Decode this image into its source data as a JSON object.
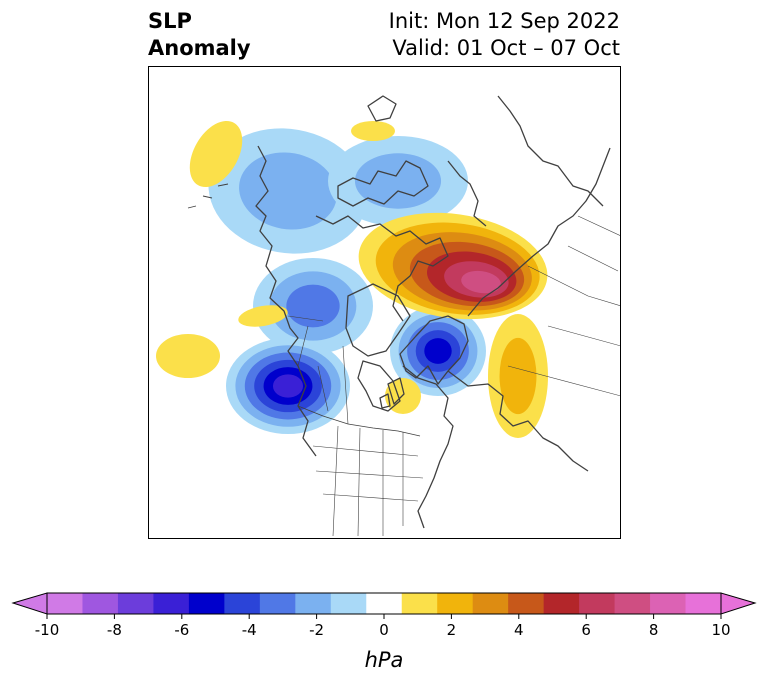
{
  "title": {
    "left": "SLP\nAnomaly",
    "init": "Init: Mon 12 Sep 2022",
    "valid": "Valid: 01 Oct – 07 Oct"
  },
  "colorbar": {
    "unit": "hPa",
    "tick_labels": [
      "-10",
      "-8",
      "-6",
      "-4",
      "-2",
      "0",
      "2",
      "4",
      "6",
      "8",
      "10"
    ],
    "levels": [
      -10,
      -9,
      -8,
      -7,
      -6,
      -5,
      -4,
      -3,
      -2,
      -1,
      1,
      2,
      3,
      4,
      5,
      6,
      7,
      8,
      9,
      10
    ],
    "colors": [
      "#d07ae6",
      "#9f57e0",
      "#6c3ddb",
      "#3a20d6",
      "#0000cc",
      "#2b44d8",
      "#5078e6",
      "#7bb1f0",
      "#a9d9f7",
      "#ffffff",
      "#fbe04a",
      "#f1b40c",
      "#dd8c12",
      "#c7581a",
      "#b3262a",
      "#c23a5e",
      "#cf4e82",
      "#dc62b4",
      "#e771d9"
    ],
    "under_color": "#d07ae6",
    "over_color": "#e771d9"
  },
  "map": {
    "projection": "north-polar-stereographic",
    "border_color": "#000000",
    "coastline_color": "#404040",
    "anomaly_features": [
      {
        "name": "lows-alaska-canada-arc",
        "sign": "negative",
        "peak_hpa": -3
      },
      {
        "name": "low-gulf-of-alaska-pacific",
        "sign": "negative",
        "peak_hpa": -7
      },
      {
        "name": "low-scandinavia",
        "sign": "negative",
        "peak_hpa": -6
      },
      {
        "name": "high-siberia-arctic",
        "sign": "positive",
        "peak_hpa": 8
      },
      {
        "name": "high-eastern-europe-tail",
        "sign": "positive",
        "peak_hpa": 3
      },
      {
        "name": "high-north-atlantic",
        "sign": "positive",
        "peak_hpa": 1.5
      },
      {
        "name": "high-subtropical-pacific",
        "sign": "positive",
        "peak_hpa": 1.5
      }
    ]
  }
}
